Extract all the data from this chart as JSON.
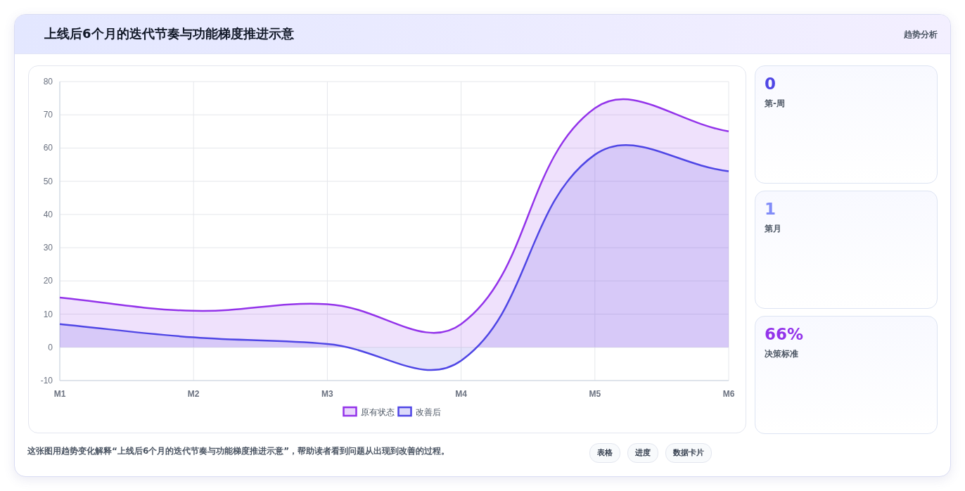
{
  "chart_data": [
    {
      "type": "area",
      "title": "上线后6个月的迭代节奏与功能梯度推进示意",
      "categories": [
        "M1",
        "M2",
        "M3",
        "M4",
        "M5",
        "M6"
      ],
      "series": [
        {
          "name": "原有状态",
          "color": "#9333ea",
          "values": [
            15,
            11,
            13,
            7,
            72,
            65
          ]
        },
        {
          "name": "改善后",
          "color": "#4f46e5",
          "values": [
            7,
            3,
            1,
            -4,
            58,
            53
          ]
        }
      ],
      "ylim": [
        -10,
        80
      ],
      "yticks": [
        -10,
        0,
        10,
        20,
        30,
        40,
        50,
        60,
        70,
        80
      ],
      "grid": true,
      "legend": "bottom",
      "marker": "none",
      "line_style": "solid",
      "annotations": [
        "这张图用趋势变化解释“上线后6个月的迭代节奏与功能梯度推进示意”，帮助读者看到问题从出现到改善的过程。",
        "表格",
        "进度",
        "数据卡片"
      ]
    },
    {
      "type": "other",
      "title": "趋势分析",
      "annotations": [
        "0",
        "第-周",
        "1",
        "第月",
        "66%",
        "决策标准"
      ]
    }
  ]
}
